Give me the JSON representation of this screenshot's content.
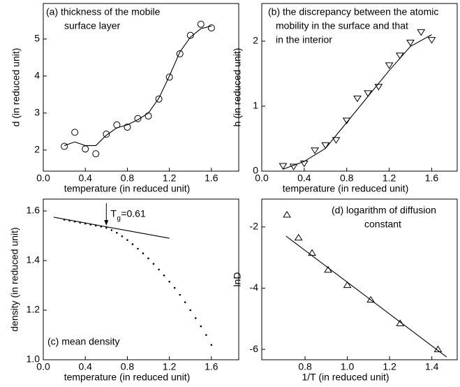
{
  "chart_data": [
    {
      "type": "scatter",
      "marker": "circle",
      "color": "#000000",
      "title": [
        "(a) thickness of the mobile",
        "surface layer"
      ],
      "xlabel": "temperature (in reduced unit)",
      "ylabel": "d (in reduced unit)",
      "xlim": [
        0,
        1.86
      ],
      "ylim": [
        1.43,
        5.96
      ],
      "xticks": [
        {
          "value": 0,
          "label": "0.0"
        },
        0.4,
        0.8,
        1.2,
        1.6
      ],
      "yticks": [
        2,
        3,
        4,
        5
      ],
      "x": [
        0.2,
        0.3,
        0.4,
        0.5,
        0.6,
        0.7,
        0.8,
        0.9,
        1.0,
        1.1,
        1.2,
        1.3,
        1.4,
        1.5,
        1.6
      ],
      "values": [
        2.1,
        2.48,
        2.03,
        1.9,
        2.43,
        2.68,
        2.62,
        2.85,
        2.92,
        3.38,
        3.97,
        4.6,
        5.1,
        5.4,
        5.3
      ],
      "fit": {
        "x": [
          0.2,
          0.3,
          0.4,
          0.5,
          0.6,
          0.7,
          0.8,
          0.9,
          1.0,
          1.1,
          1.2,
          1.3,
          1.4,
          1.5,
          1.6
        ],
        "values": [
          2.12,
          2.22,
          2.12,
          2.12,
          2.4,
          2.6,
          2.68,
          2.82,
          3.0,
          3.4,
          4.0,
          4.65,
          5.05,
          5.28,
          5.35
        ]
      }
    },
    {
      "type": "scatter",
      "marker": "triangle-down",
      "color": "#000000",
      "title": [
        "(b) the discrepancy between the atomic",
        "mobility in the surface and that",
        "in the interior"
      ],
      "xlabel": "temperature (in reduced unit)",
      "ylabel": "h (in reduced unit)",
      "xlim": [
        0,
        1.84
      ],
      "ylim": [
        0,
        2.58
      ],
      "xticks": [
        {
          "value": 0,
          "label": "0.0"
        },
        0.4,
        0.8,
        1.2,
        1.6
      ],
      "yticks": [
        0,
        1,
        2
      ],
      "x": [
        0.2,
        0.3,
        0.4,
        0.5,
        0.6,
        0.7,
        0.8,
        0.9,
        1.0,
        1.1,
        1.2,
        1.3,
        1.4,
        1.5,
        1.6
      ],
      "values": [
        0.08,
        0.07,
        0.12,
        0.32,
        0.4,
        0.48,
        0.78,
        1.12,
        1.2,
        1.3,
        1.63,
        1.78,
        1.98,
        2.14,
        2.02
      ],
      "fit": {
        "x": [
          0.2,
          0.4,
          0.6,
          0.8,
          1.0,
          1.2,
          1.4,
          1.6
        ],
        "values": [
          0.03,
          0.15,
          0.35,
          0.75,
          1.15,
          1.55,
          1.92,
          2.1
        ]
      }
    },
    {
      "type": "scatter",
      "marker": "dot",
      "color": "#000000",
      "title": [
        "(c) mean density"
      ],
      "annotation": [
        "T",
        "g",
        "=0.61"
      ],
      "xlabel": "temperature (in reduced unit)",
      "ylabel": "density (in reduced unit)",
      "xlim": [
        0,
        1.86
      ],
      "ylim": [
        1.0,
        1.648
      ],
      "xticks": [
        {
          "value": 0,
          "label": "0.0"
        },
        0.4,
        0.8,
        1.2,
        1.6
      ],
      "yticks": [
        {
          "value": 1.0,
          "label": "1.0"
        },
        1.2,
        1.4,
        1.6
      ],
      "x": [
        0.2,
        0.25,
        0.3,
        0.35,
        0.4,
        0.45,
        0.5,
        0.55,
        0.6,
        0.65,
        0.7,
        0.75,
        0.8,
        0.85,
        0.9,
        0.95,
        1.0,
        1.05,
        1.1,
        1.15,
        1.2,
        1.25,
        1.3,
        1.35,
        1.4,
        1.45,
        1.5,
        1.55,
        1.6
      ],
      "values": [
        1.565,
        1.561,
        1.557,
        1.553,
        1.549,
        1.545,
        1.541,
        1.537,
        1.532,
        1.523,
        1.512,
        1.498,
        1.483,
        1.466,
        1.448,
        1.429,
        1.409,
        1.387,
        1.364,
        1.34,
        1.315,
        1.29,
        1.262,
        1.232,
        1.2,
        1.168,
        1.135,
        1.1,
        1.06
      ],
      "fit": {
        "x": [
          0.1,
          1.2
        ],
        "values": [
          1.575,
          1.49
        ]
      }
    },
    {
      "type": "scatter",
      "marker": "triangle-up",
      "color": "#000000",
      "title": [
        "(d) logarithm of diffusion",
        "constant"
      ],
      "xlabel": "1/T (in reduced unit)",
      "ylabel": "lnD",
      "xlim": [
        0.595,
        1.52
      ],
      "ylim": [
        -6.34,
        -1.09
      ],
      "xticks": [
        0.8,
        {
          "value": 1.0,
          "label": "1.0"
        },
        1.2,
        1.4
      ],
      "yticks": [
        -2,
        -4,
        -6
      ],
      "x": [
        0.714,
        0.769,
        0.833,
        0.909,
        1.0,
        1.111,
        1.25,
        1.429
      ],
      "values": [
        -1.6,
        -2.35,
        -2.85,
        -3.4,
        -3.9,
        -4.38,
        -5.15,
        -6.0
      ],
      "fit": {
        "x": [
          0.71,
          1.47
        ],
        "values": [
          -2.3,
          -6.25
        ]
      }
    }
  ]
}
